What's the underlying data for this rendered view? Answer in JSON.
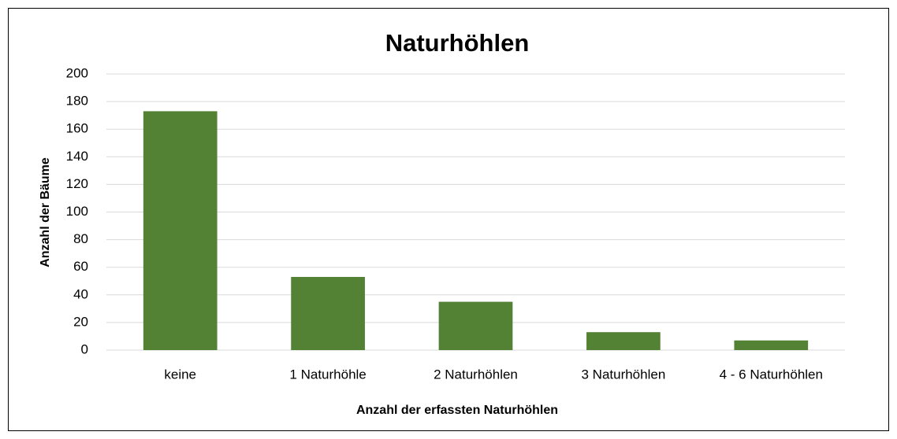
{
  "chart_data": {
    "type": "bar",
    "title": "Naturhöhlen",
    "x_label": "Anzahl der erfassten Naturhöhlen",
    "y_label": "Anzahl der Bäume",
    "categories": [
      "keine",
      "1 Naturhöhle",
      "2 Naturhöhlen",
      "3 Naturhöhlen",
      "4 - 6 Naturhöhlen"
    ],
    "values": [
      173,
      53,
      35,
      13,
      7
    ],
    "color": "#548235",
    "ylim": [
      0,
      200
    ],
    "yticks": [
      0,
      20,
      40,
      60,
      80,
      100,
      120,
      140,
      160,
      180,
      200
    ],
    "grid": true
  }
}
